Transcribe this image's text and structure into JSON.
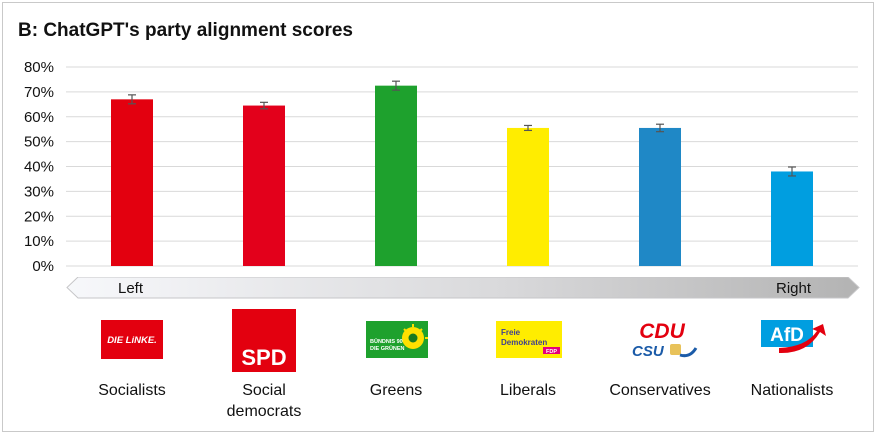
{
  "chart_data": {
    "type": "bar",
    "title": "B: ChatGPT's party alignment scores",
    "categories": [
      "Socialists",
      "Social democrats",
      "Greens",
      "Liberals",
      "Conservatives",
      "Nationalists"
    ],
    "category_lines": [
      [
        "Socialists"
      ],
      [
        "Social",
        "democrats"
      ],
      [
        "Greens"
      ],
      [
        "Liberals"
      ],
      [
        "Conservatives"
      ],
      [
        "Nationalists"
      ]
    ],
    "values": [
      67,
      64.5,
      72.5,
      55.5,
      55.5,
      38
    ],
    "error": [
      1.8,
      1.3,
      1.8,
      1.0,
      1.5,
      1.8
    ],
    "colors": [
      "#e3000f",
      "#e3001b",
      "#1ea12d",
      "#ffed00",
      "#1f88c6",
      "#009ee0"
    ],
    "ylim": [
      0,
      80
    ],
    "yticks": [
      0,
      10,
      20,
      30,
      40,
      50,
      60,
      70,
      80
    ],
    "ytick_labels": [
      "0%",
      "10%",
      "20%",
      "30%",
      "40%",
      "50%",
      "60%",
      "70%",
      "80%"
    ],
    "grid": true,
    "xlabel": "",
    "ylabel": ""
  },
  "axis_arrow": {
    "left_label": "Left",
    "right_label": "Right"
  },
  "logos": {
    "linke": "DIE LiNKE.",
    "spd": "SPD",
    "gruene_line1": "BÜNDNIS 90",
    "gruene_line2": "DIE GRÜNEN",
    "fdp_line1": "Freie",
    "fdp_line2": "Demokraten",
    "fdp_tag": "FDP",
    "cdu": "CDU",
    "csu": "CSU",
    "afd": "AfD"
  },
  "colors": {
    "axis_text": "#111111",
    "gridline": "#d9d9d9",
    "errorbar": "#555555",
    "frame": "#c9c9c9"
  }
}
